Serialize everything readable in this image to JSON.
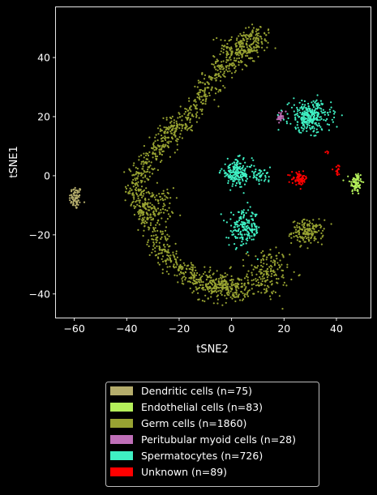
{
  "chart_data": {
    "type": "scatter",
    "title": "",
    "xlabel": "tSNE2",
    "ylabel": "tSNE1",
    "xlim": [
      -67,
      53
    ],
    "ylim": [
      -48,
      57
    ],
    "xticks": [
      -60,
      -40,
      -20,
      0,
      20,
      40
    ],
    "yticks": [
      -40,
      -20,
      0,
      20,
      40
    ],
    "grid": false,
    "background": "#000000",
    "legend_position": "bottom",
    "series": [
      {
        "name": "Dendritic cells (n=75)",
        "color": "#b5ad6c",
        "count": 75,
        "clusters": [
          {
            "cx": -59.5,
            "cy": -7.5,
            "sx": 1.2,
            "sy": 2.0,
            "n": 75
          }
        ]
      },
      {
        "name": "Endothelial cells (n=83)",
        "color": "#b4ef5a",
        "count": 83,
        "clusters": [
          {
            "cx": 47.5,
            "cy": -2.5,
            "sx": 1.2,
            "sy": 2.0,
            "n": 83
          }
        ]
      },
      {
        "name": "Germ cells (n=1860)",
        "color": "#98a332",
        "count": 1860,
        "path": [
          [
            12,
            48
          ],
          [
            8,
            45
          ],
          [
            2,
            40
          ],
          [
            -4,
            36
          ],
          [
            -9,
            30
          ],
          [
            -14,
            23
          ],
          [
            -19,
            17
          ],
          [
            -25,
            11
          ],
          [
            -31,
            6
          ],
          [
            -35,
            0
          ],
          [
            -36,
            -6
          ],
          [
            -34,
            -11
          ],
          [
            -31,
            -17
          ],
          [
            -27,
            -24
          ],
          [
            -22,
            -30
          ],
          [
            -16,
            -34
          ],
          [
            -10,
            -37
          ],
          [
            -4,
            -38
          ],
          [
            2,
            -39
          ],
          [
            8,
            -37
          ]
        ],
        "clusters": [
          {
            "cx": 3,
            "cy": 43,
            "sx": 4,
            "sy": 3,
            "n": 120
          },
          {
            "cx": -23,
            "cy": 16,
            "sx": 2,
            "sy": 2,
            "n": 60
          },
          {
            "cx": -28,
            "cy": -10,
            "sx": 3,
            "sy": 3,
            "n": 80
          },
          {
            "cx": 29,
            "cy": -19,
            "sx": 3,
            "sy": 2,
            "n": 160
          },
          {
            "cx": 14,
            "cy": -33,
            "sx": 4,
            "sy": 4,
            "n": 160
          },
          {
            "cx": -4,
            "cy": -37,
            "sx": 4,
            "sy": 2.5,
            "n": 100
          }
        ]
      },
      {
        "name": "Peritubular myoid cells (n=28)",
        "color": "#bf6fb8",
        "count": 28,
        "clusters": [
          {
            "cx": 18.5,
            "cy": 20,
            "sx": 0.6,
            "sy": 0.8,
            "n": 28
          }
        ]
      },
      {
        "name": "Spermatocytes (n=726)",
        "color": "#3ff0c3",
        "count": 726,
        "clusters": [
          {
            "cx": 30,
            "cy": 20,
            "sx": 4,
            "sy": 2.6,
            "n": 300
          },
          {
            "cx": 2,
            "cy": 1,
            "sx": 3,
            "sy": 2.2,
            "n": 200
          },
          {
            "cx": 11,
            "cy": 0,
            "sx": 2,
            "sy": 1,
            "n": 40
          },
          {
            "cx": 5,
            "cy": -18,
            "sx": 3,
            "sy": 3,
            "n": 186
          }
        ]
      },
      {
        "name": "Unknown (n=89)",
        "color": "#ff0000",
        "count": 89,
        "clusters": [
          {
            "cx": 26,
            "cy": -1,
            "sx": 1.5,
            "sy": 1,
            "n": 70
          },
          {
            "cx": 40.5,
            "cy": 2,
            "sx": 0.8,
            "sy": 1,
            "n": 15
          },
          {
            "cx": 36.5,
            "cy": 8,
            "sx": 0.3,
            "sy": 0.3,
            "n": 4
          }
        ]
      }
    ]
  }
}
